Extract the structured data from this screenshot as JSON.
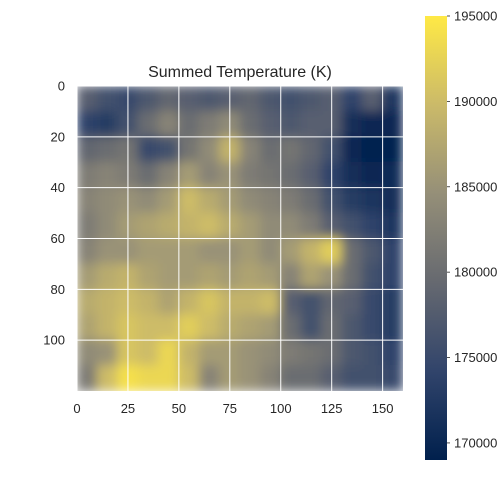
{
  "chart_data": {
    "type": "heatmap",
    "title": "Summed Temperature (K)",
    "xlabel": "",
    "ylabel": "",
    "xlim": [
      0,
      160
    ],
    "ylim": [
      120,
      0
    ],
    "x_ticks": [
      0,
      25,
      50,
      75,
      100,
      125,
      150
    ],
    "y_ticks": [
      0,
      20,
      40,
      60,
      80,
      100
    ],
    "grid": true,
    "colormap": "cividis",
    "colormap_stops": [
      "#00204d",
      "#31446b",
      "#666970",
      "#958f78",
      "#cbba69",
      "#ffe945"
    ],
    "colorbar": {
      "range": [
        169000,
        195000
      ],
      "ticks": [
        170000,
        175000,
        180000,
        185000,
        190000,
        195000
      ],
      "placement": "right"
    },
    "grid_shape": {
      "rows": 12,
      "cols": 16
    },
    "z_values": [
      [
        178000,
        176000,
        175000,
        177000,
        179000,
        178000,
        177000,
        178000,
        179000,
        177000,
        176000,
        177000,
        178000,
        174000,
        178000,
        172000
      ],
      [
        174000,
        173000,
        176000,
        180000,
        183000,
        180000,
        182000,
        184000,
        180000,
        178000,
        177000,
        178000,
        178000,
        171000,
        170000,
        170000
      ],
      [
        179000,
        180000,
        181000,
        175000,
        176000,
        181000,
        184000,
        189000,
        183000,
        180000,
        181000,
        179000,
        176000,
        170000,
        169500,
        169500
      ],
      [
        182000,
        183000,
        182000,
        180000,
        183000,
        186000,
        183000,
        185000,
        182000,
        181000,
        180000,
        178000,
        174000,
        171000,
        170000,
        170500
      ],
      [
        183000,
        184000,
        185000,
        184000,
        186000,
        190000,
        188000,
        186000,
        184000,
        183000,
        182000,
        180000,
        176000,
        173000,
        172000,
        171000
      ],
      [
        182000,
        184000,
        186000,
        187000,
        188000,
        189000,
        190000,
        188000,
        186000,
        184000,
        184000,
        182000,
        178000,
        176000,
        174000,
        172000
      ],
      [
        183000,
        185000,
        185000,
        186000,
        186000,
        186000,
        185000,
        185000,
        186000,
        184000,
        186000,
        189000,
        192000,
        180000,
        177000,
        174000
      ],
      [
        186000,
        188000,
        189000,
        187000,
        186000,
        186000,
        187000,
        186000,
        187000,
        186000,
        183000,
        187000,
        185000,
        180000,
        176000,
        174000
      ],
      [
        188000,
        189000,
        190000,
        189000,
        187000,
        189000,
        191000,
        189000,
        189000,
        190000,
        178000,
        176000,
        179000,
        178000,
        175000,
        173000
      ],
      [
        187000,
        189000,
        191000,
        190000,
        190000,
        192000,
        190000,
        188000,
        187000,
        186000,
        180000,
        176000,
        180000,
        177000,
        175000,
        173000
      ],
      [
        184000,
        185000,
        191000,
        190000,
        193000,
        189000,
        186000,
        186000,
        185000,
        184000,
        182000,
        181000,
        180000,
        177000,
        176000,
        174000
      ],
      [
        182000,
        190000,
        194000,
        193000,
        193000,
        190000,
        183000,
        186000,
        185000,
        183000,
        180000,
        180000,
        178000,
        176000,
        176000,
        175000
      ]
    ]
  }
}
